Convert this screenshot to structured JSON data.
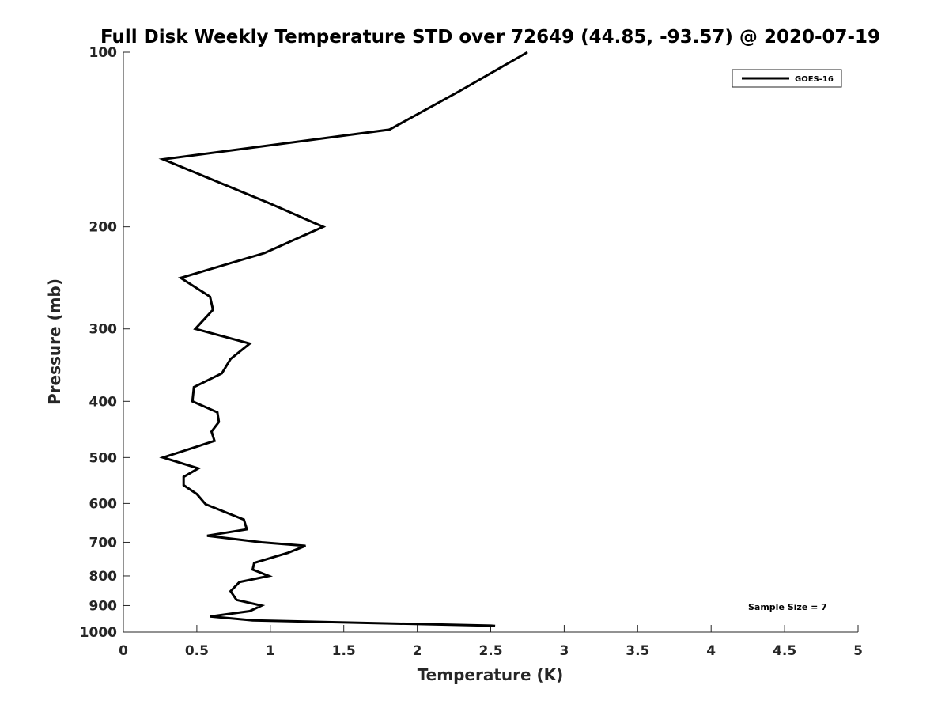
{
  "chart_data": {
    "type": "line",
    "title": "Full Disk Weekly Temperature STD over 72649 (44.85, -93.57) @ 2020-07-19",
    "xlabel": "Temperature (K)",
    "ylabel": "Pressure (mb)",
    "xlim": [
      0,
      5
    ],
    "ylim": [
      100,
      1000
    ],
    "y_scale": "log",
    "y_reversed": true,
    "x_ticks": [
      "0",
      "0.5",
      "1",
      "1.5",
      "2",
      "2.5",
      "3",
      "3.5",
      "4",
      "4.5",
      "5"
    ],
    "y_ticks": [
      "100",
      "200",
      "300",
      "400",
      "500",
      "600",
      "700",
      "800",
      "900",
      "1000"
    ],
    "grid": false,
    "legend_position": "top-right",
    "series": [
      {
        "name": "GOES-16",
        "color": "#000000",
        "points": [
          [
            2.75,
            100
          ],
          [
            2.28,
            117
          ],
          [
            1.81,
            136
          ],
          [
            0.27,
            153
          ],
          [
            0.99,
            182
          ],
          [
            1.36,
            200
          ],
          [
            0.96,
            222
          ],
          [
            0.39,
            245
          ],
          [
            0.59,
            264
          ],
          [
            0.61,
            278
          ],
          [
            0.49,
            300
          ],
          [
            0.86,
            318
          ],
          [
            0.73,
            338
          ],
          [
            0.67,
            358
          ],
          [
            0.48,
            378
          ],
          [
            0.47,
            400
          ],
          [
            0.64,
            418
          ],
          [
            0.65,
            434
          ],
          [
            0.6,
            451
          ],
          [
            0.62,
            468
          ],
          [
            0.27,
            500
          ],
          [
            0.51,
            522
          ],
          [
            0.41,
            540
          ],
          [
            0.41,
            558
          ],
          [
            0.5,
            578
          ],
          [
            0.56,
            602
          ],
          [
            0.82,
            640
          ],
          [
            0.84,
            665
          ],
          [
            0.57,
            682
          ],
          [
            0.94,
            700
          ],
          [
            1.24,
            710
          ],
          [
            1.12,
            730
          ],
          [
            0.89,
            760
          ],
          [
            0.88,
            780
          ],
          [
            0.99,
            800
          ],
          [
            0.79,
            820
          ],
          [
            0.73,
            850
          ],
          [
            0.77,
            880
          ],
          [
            0.94,
            900
          ],
          [
            0.86,
            920
          ],
          [
            0.59,
            940
          ],
          [
            0.88,
            955
          ],
          [
            2.5,
            975
          ],
          [
            2.53,
            976
          ]
        ]
      }
    ],
    "annotations": [
      "Sample Size = 7"
    ]
  }
}
